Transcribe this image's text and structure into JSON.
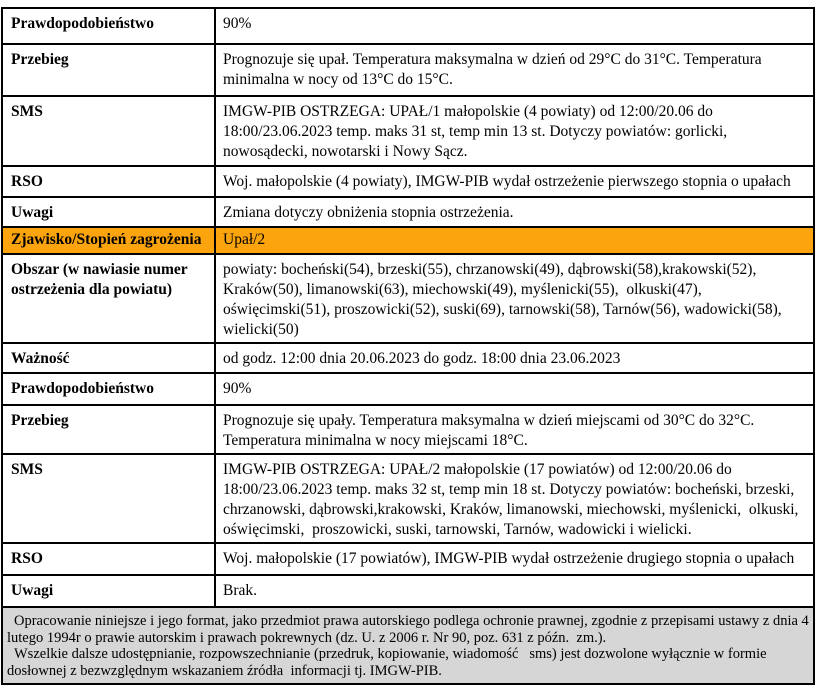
{
  "colors": {
    "highlight_orange": "#FCA40D",
    "footer_gray": "#D6D6D6",
    "border_black": "#000000"
  },
  "table": {
    "rows": [
      {
        "label": "Prawdopodobieństwo",
        "value": "90%"
      },
      {
        "label": "Przebieg",
        "value": "Prognozuje się upał. Temperatura maksymalna w dzień od 29°C do 31°C. Temperatura minimalna w nocy od 13°C do 15°C."
      },
      {
        "label": "SMS",
        "value": "IMGW-PIB OSTRZEGA: UPAŁ/1 małopolskie (4 powiaty) od 12:00/20.06 do 18:00/23.06.2023 temp. maks 31 st, temp min 13 st. Dotyczy powiatów: gorlicki, nowosądecki, nowotarski i Nowy Sącz."
      },
      {
        "label": "RSO",
        "value": "Woj. małopolskie (4 powiaty), IMGW-PIB wydał ostrzeżenie pierwszego stopnia o upałach"
      },
      {
        "label": "Uwagi",
        "value": "Zmiana dotyczy obniżenia stopnia ostrzeżenia."
      },
      {
        "label": "Zjawisko/Stopień zagrożenia",
        "value": "Upał/2",
        "highlight": true
      },
      {
        "label": "Obszar (w nawiasie numer ostrzeżenia dla powiatu)",
        "value": "powiaty: bocheński(54), brzeski(55), chrzanowski(49), dąbrowski(58),krakowski(52), Kraków(50), limanowski(63), miechowski(49), myślenicki(55),  olkuski(47), oświęcimski(51), proszowicki(52), suski(69), tarnowski(58), Tarnów(56), wadowicki(58), wielicki(50)"
      },
      {
        "label": "Ważność",
        "value": "od godz. 12:00 dnia 20.06.2023 do godz. 18:00 dnia 23.06.2023"
      },
      {
        "label": "Prawdopodobieństwo",
        "value": "90%"
      },
      {
        "label": "Przebieg",
        "value": "Prognozuje się upały. Temperatura maksymalna w dzień miejscami od 30°C do 32°C. Temperatura minimalna w nocy miejscami 18°C."
      },
      {
        "label": "SMS",
        "value": "IMGW-PIB OSTRZEGA: UPAŁ/2 małopolskie (17 powiatów) od 12:00/20.06 do 18:00/23.06.2023 temp. maks 32 st, temp min 18 st. Dotyczy powiatów: bocheński, brzeski, chrzanowski, dąbrowski,krakowski, Kraków, limanowski, miechowski, myślenicki,  olkuski, oświęcimski,  proszowicki, suski, tarnowski, Tarnów, wadowicki i wielicki."
      },
      {
        "label": "RSO",
        "value": "Woj. małopolskie (17 powiatów), IMGW-PIB wydał ostrzeżenie drugiego stopnia o upałach"
      },
      {
        "label": "Uwagi",
        "value": "Brak."
      }
    ]
  },
  "footer": {
    "paragraph1": "Opracowanie niniejsze i jego format, jako przedmiot prawa autorskiego podlega ochronie prawnej, zgodnie z przepisami ustawy z dnia 4 lutego 1994r o prawie autorskim i prawach pokrewnych (dz. U. z 2006 r. Nr 90, poz. 631 z późn.  zm.).",
    "paragraph2": "Wszelkie dalsze udostępnianie, rozpowszechnianie (przedruk, kopiowanie, wiadomość   sms) jest dozwolone wyłącznie w formie dosłownej z bezwzględnym wskazaniem źródła  informacji tj. IMGW-PIB."
  }
}
